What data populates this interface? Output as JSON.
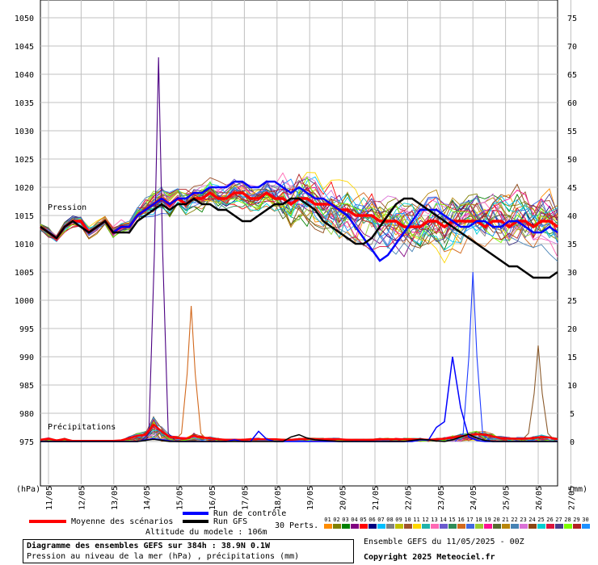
{
  "chart_data": {
    "type": "line",
    "left_axis_unit": "(hPa)",
    "right_axis_unit": "(mm)",
    "left_ticks": [
      1050,
      1045,
      1040,
      1035,
      1030,
      1025,
      1020,
      1015,
      1010,
      1005,
      1000,
      995,
      990,
      985,
      980,
      975
    ],
    "right_ticks": [
      75,
      70,
      65,
      60,
      55,
      50,
      45,
      40,
      35,
      30,
      25,
      20,
      15,
      10,
      5,
      0
    ],
    "x_ticks": [
      "11/05",
      "12/05",
      "13/05",
      "14/05",
      "15/05",
      "16/05",
      "17/05",
      "18/05",
      "19/05",
      "20/05",
      "21/05",
      "22/05",
      "23/05",
      "24/05",
      "25/05",
      "26/05",
      "27/05"
    ],
    "ylim_pressure": [
      975,
      1050
    ],
    "ylim_precip": [
      0,
      75
    ],
    "grid": true,
    "annotation_pressure": "Pression",
    "annotation_precip": "Précipitations",
    "series": [
      {
        "name": "Moyenne des scénarios",
        "color": "#ff0000",
        "pressure": [
          1013,
          1012,
          1011,
          1013,
          1014,
          1014,
          1012,
          1013,
          1014,
          1012,
          1013,
          1013,
          1015,
          1016,
          1017,
          1018,
          1017,
          1018,
          1017,
          1018,
          1018,
          1019,
          1018,
          1018,
          1019,
          1019,
          1018,
          1018,
          1019,
          1018,
          1018,
          1017,
          1018,
          1018,
          1017,
          1017,
          1017,
          1016,
          1016,
          1015,
          1015,
          1015,
          1014,
          1014,
          1014,
          1013,
          1013,
          1013,
          1014,
          1014,
          1013,
          1014,
          1014,
          1014,
          1014,
          1013,
          1014,
          1014,
          1013,
          1014,
          1014,
          1013,
          1014,
          1014,
          1013
        ],
        "precip": [
          0.3,
          0.5,
          0.2,
          0.4,
          0.1,
          0.1,
          0.1,
          0.1,
          0.1,
          0.1,
          0.2,
          0.6,
          1.0,
          1.2,
          3.0,
          1.8,
          0.8,
          0.6,
          0.5,
          1.0,
          0.7,
          0.6,
          0.4,
          0.3,
          0.3,
          0.3,
          0.4,
          0.4,
          0.4,
          0.4,
          0.3,
          0.3,
          0.4,
          0.5,
          0.4,
          0.4,
          0.4,
          0.4,
          0.3,
          0.3,
          0.3,
          0.3,
          0.4,
          0.4,
          0.4,
          0.4,
          0.4,
          0.4,
          0.3,
          0.4,
          0.5,
          0.7,
          0.9,
          1.1,
          1.3,
          1.2,
          0.9,
          0.6,
          0.5,
          0.5,
          0.5,
          0.6,
          0.8,
          0.7,
          0.4
        ]
      },
      {
        "name": "Run de contrôle",
        "color": "#0000ff",
        "pressure": [
          1013,
          1012,
          1011,
          1013,
          1014,
          1013,
          1012,
          1013,
          1014,
          1012,
          1013,
          1013,
          1015,
          1016,
          1017,
          1018,
          1017,
          1018,
          1018,
          1019,
          1019,
          1020,
          1020,
          1020,
          1021,
          1021,
          1020,
          1020,
          1021,
          1021,
          1020,
          1019,
          1020,
          1019,
          1018,
          1018,
          1017,
          1016,
          1015,
          1013,
          1011,
          1009,
          1007,
          1008,
          1010,
          1012,
          1014,
          1016,
          1016,
          1016,
          1015,
          1014,
          1013,
          1013,
          1014,
          1014,
          1013,
          1013,
          1014,
          1014,
          1013,
          1012,
          1012,
          1013,
          1012
        ],
        "precip": [
          0,
          0,
          0,
          0,
          0,
          0,
          0,
          0,
          0,
          0,
          0,
          0,
          0,
          0.3,
          0.5,
          0.3,
          0.1,
          0,
          0,
          0,
          0,
          0,
          0,
          0,
          0.3,
          0,
          0,
          1.8,
          0.4,
          0,
          0,
          0,
          0,
          0,
          0,
          0,
          0,
          0,
          0,
          0,
          0,
          0,
          0,
          0,
          0,
          0,
          0,
          0.3,
          0.2,
          2.5,
          3.5,
          15,
          6,
          0.8,
          0.2,
          0,
          0,
          0,
          0,
          0,
          0,
          0,
          0,
          0,
          0
        ]
      },
      {
        "name": "Run GFS",
        "color": "#000000",
        "pressure": [
          1013,
          1012,
          1011,
          1013,
          1014,
          1013,
          1012,
          1013,
          1014,
          1012,
          1012,
          1012,
          1014,
          1015,
          1016,
          1017,
          1016,
          1017,
          1017,
          1018,
          1017,
          1017,
          1016,
          1016,
          1015,
          1014,
          1014,
          1015,
          1016,
          1017,
          1017,
          1018,
          1018,
          1017,
          1016,
          1014,
          1013,
          1012,
          1011,
          1010,
          1010,
          1011,
          1013,
          1015,
          1017,
          1018,
          1018,
          1017,
          1016,
          1015,
          1014,
          1013,
          1012,
          1011,
          1010,
          1009,
          1008,
          1007,
          1006,
          1006,
          1005,
          1004,
          1004,
          1004,
          1005
        ],
        "precip": [
          0,
          0,
          0,
          0,
          0,
          0,
          0,
          0,
          0,
          0,
          0,
          0,
          0,
          0.2,
          0.4,
          0.2,
          0,
          0,
          0,
          0,
          0,
          0,
          0,
          0,
          0,
          0,
          0,
          0,
          0,
          0,
          0,
          0.8,
          1.2,
          0.6,
          0.3,
          0.2,
          0.1,
          0,
          0,
          0,
          0,
          0,
          0,
          0,
          0,
          0,
          0.2,
          0.4,
          0.3,
          0.1,
          0,
          0.3,
          0.8,
          1.3,
          0.6,
          0.2,
          0,
          0,
          0,
          0,
          0,
          0,
          0,
          0,
          0
        ]
      }
    ],
    "perturbations_label": "30 Perts.",
    "perturbation_ids": [
      "01",
      "02",
      "03",
      "04",
      "05",
      "06",
      "07",
      "08",
      "09",
      "10",
      "11",
      "12",
      "13",
      "14",
      "15",
      "16",
      "17",
      "18",
      "19",
      "20",
      "21",
      "22",
      "23",
      "24",
      "25",
      "26",
      "27",
      "28",
      "29",
      "30"
    ],
    "perturbation_colors": [
      "#ff8c00",
      "#808000",
      "#008000",
      "#800080",
      "#ff0000",
      "#000080",
      "#00bfff",
      "#808080",
      "#c0c000",
      "#a0522d",
      "#ffd700",
      "#20b2aa",
      "#ff69b4",
      "#6a5acd",
      "#2e8b57",
      "#d2691e",
      "#4169e1",
      "#9acd32",
      "#ff1493",
      "#556b2f",
      "#b8860b",
      "#4682b4",
      "#da70d6",
      "#8b4513",
      "#00ced1",
      "#dc143c",
      "#483d8b",
      "#7cfc00",
      "#b22222",
      "#1e90ff"
    ],
    "notable_peaks": [
      {
        "series": "perturbation (purple)",
        "x": "14/05",
        "pressure_equivalent": 1043,
        "precip_mm": 67
      },
      {
        "series": "perturbation (orange)",
        "x": "15/05",
        "precip_mm": 24
      },
      {
        "series": "perturbation (blue)",
        "x": "24/05",
        "precip_mm": 30
      },
      {
        "series": "perturbation (brown)",
        "x": "26/05",
        "precip_mm": 17
      }
    ]
  },
  "info": {
    "altitude": "Altitude du modele : 106m",
    "title_line1": "Diagramme des ensembles GEFS sur 384h : 38.9N 0.1W",
    "title_line2": "Pression au niveau de la mer (hPa) , précipitations (mm)",
    "ensemble_run": "Ensemble GEFS du 11/05/2025 - 00Z",
    "copyright": "Copyright 2025 Meteociel.fr"
  }
}
